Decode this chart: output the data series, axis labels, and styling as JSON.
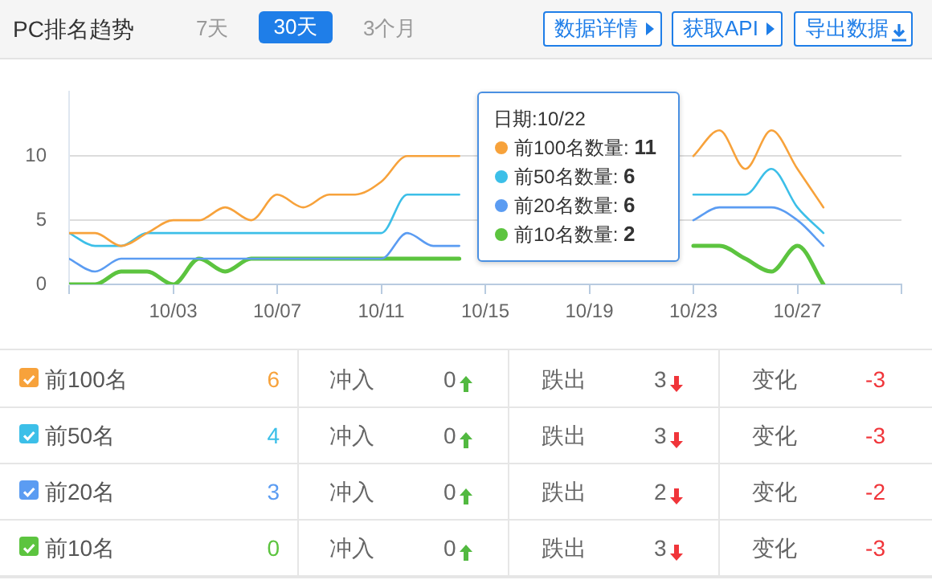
{
  "chart_data": {
    "type": "line",
    "title": "PC排名趋势",
    "x": [
      "--09-29",
      "--09-30",
      "--10-01",
      "--10-02",
      "--10-03",
      "--10-04",
      "--10-05",
      "--10-06",
      "--10-07",
      "--10-08",
      "--10-09",
      "--10-10",
      "--10-11",
      "--10-12",
      "--10-13",
      "--10-14",
      "--10-15",
      "--10-16",
      "--10-17",
      "--10-18",
      "--10-19",
      "--10-20",
      "--10-21",
      "--10-22",
      "--10-23",
      "--10-24",
      "--10-25",
      "--10-26",
      "--10-27",
      "--10-28"
    ],
    "series": [
      {
        "name": "前100名",
        "color": "#f7a23b",
        "values": [
          4,
          4,
          3,
          4,
          5,
          5,
          6,
          5,
          7,
          6,
          7,
          7,
          8,
          10,
          10,
          10,
          null,
          null,
          null,
          null,
          null,
          null,
          null,
          null,
          10,
          12,
          9,
          12,
          9,
          6
        ]
      },
      {
        "name": "前50名",
        "color": "#3cbfe8",
        "values": [
          4,
          3,
          3,
          4,
          4,
          4,
          4,
          4,
          4,
          4,
          4,
          4,
          4,
          7,
          7,
          7,
          null,
          null,
          null,
          null,
          null,
          null,
          null,
          null,
          7,
          7,
          7,
          9,
          6,
          4
        ]
      },
      {
        "name": "前20名",
        "color": "#5b9cf2",
        "values": [
          2,
          1,
          2,
          2,
          2,
          2,
          2,
          2,
          2,
          2,
          2,
          2,
          2,
          4,
          3,
          3,
          null,
          null,
          null,
          null,
          null,
          null,
          null,
          null,
          5,
          6,
          6,
          6,
          5,
          3
        ]
      },
      {
        "name": "前10名",
        "color": "#5cc43f",
        "values": [
          0,
          0,
          1,
          1,
          0,
          2,
          1,
          2,
          2,
          2,
          2,
          2,
          2,
          2,
          2,
          2,
          null,
          null,
          null,
          null,
          null,
          null,
          null,
          null,
          3,
          3,
          2,
          1,
          3,
          0
        ]
      }
    ],
    "xlim": [
      "--09-29",
      "--10-31"
    ],
    "xticks": [
      {
        "value": "--09-29",
        "label": null
      },
      {
        "value": "--10-03",
        "label": "10/03"
      },
      {
        "value": "--10-07",
        "label": "10/07"
      },
      {
        "value": "--10-11",
        "label": "10/11"
      },
      {
        "value": "--10-15",
        "label": "10/15"
      },
      {
        "value": "--10-19",
        "label": "10/19"
      },
      {
        "value": "--10-23",
        "label": "10/23"
      },
      {
        "value": "--10-27",
        "label": "10/27"
      },
      {
        "value": "--10-31",
        "label": null
      }
    ],
    "ylim": [
      0,
      15
    ],
    "yticks": [
      0,
      5,
      10
    ],
    "grid": "y",
    "legend": "bottom",
    "marker": "none",
    "line_style": "solid",
    "annotations": [
      "7天",
      "30天",
      "3个月",
      "数据详情",
      "获取API",
      "导出数据",
      "日期:10/22",
      "前100名数量: 11",
      "前50名数量: 6",
      "前20名数量: 6",
      "前10名数量: 2",
      "6",
      "冲入",
      "0",
      "跌出",
      "3",
      "变化",
      "-3",
      "4",
      "冲入",
      "0",
      "跌出",
      "3",
      "变化",
      "-3",
      "3",
      "冲入",
      "0",
      "跌出",
      "2",
      "变化",
      "-2",
      "0",
      "冲入",
      "0",
      "跌出",
      "3",
      "变化",
      "-3"
    ]
  }
}
